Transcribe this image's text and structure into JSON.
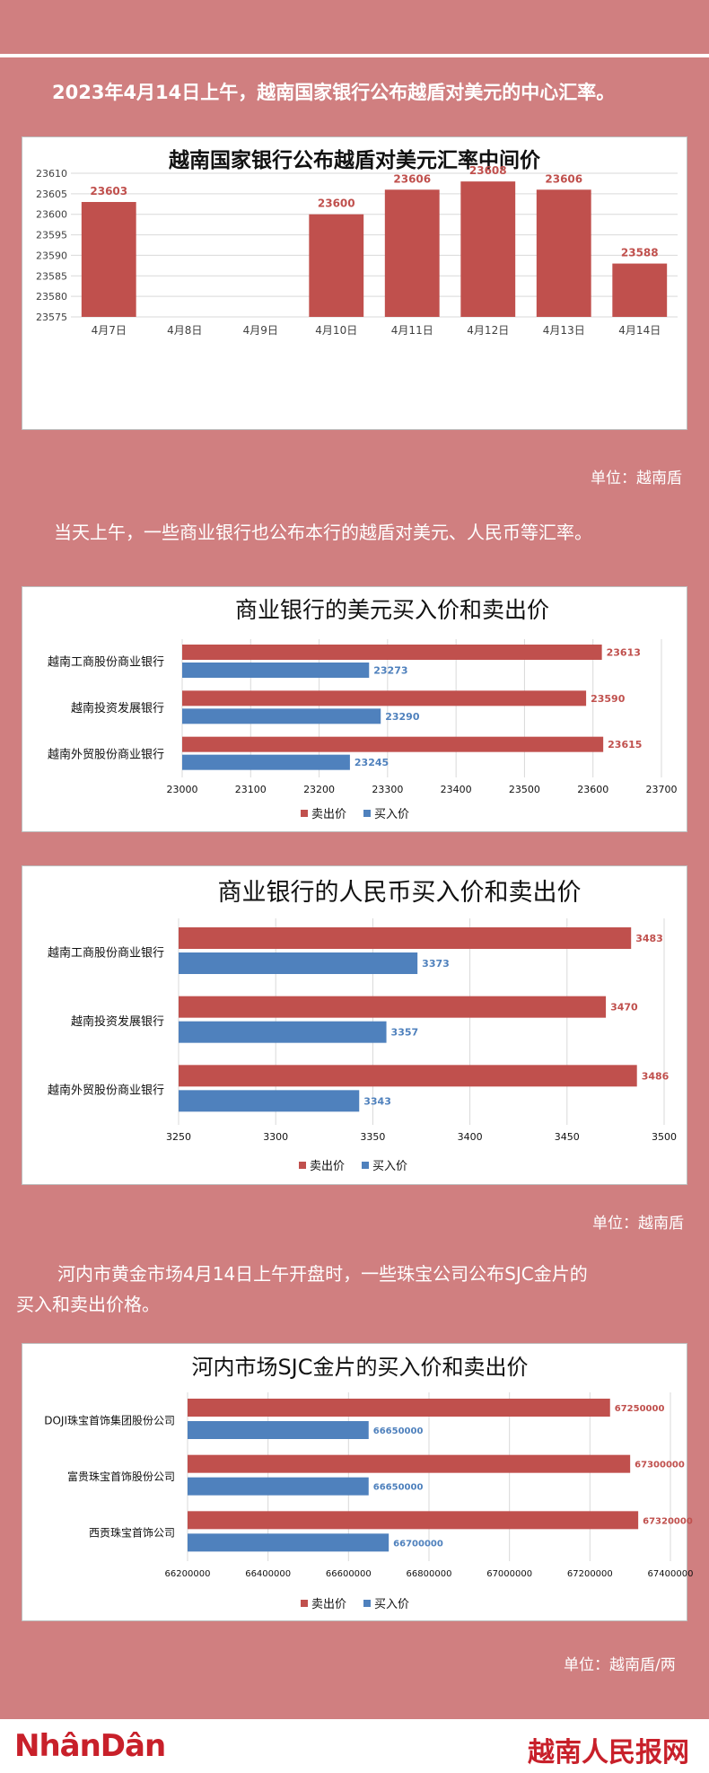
{
  "intro": {
    "text": "2023年4月14日上午，越南国家银行公布越盾对美元的中心汇率。"
  },
  "para2": {
    "text": "当天上午，一些商业银行也公布本行的越盾对美元、人民币等汇率。"
  },
  "para3": {
    "line1": "河内市黄金市场4月14日上午开盘时，一些珠宝公司公布SJC金片的",
    "line2": "买入和卖出价格。"
  },
  "units": {
    "u1": "单位：越南盾",
    "u2": "单位：越南盾",
    "u3": "单位：越南盾/两"
  },
  "footer": {
    "left_logo": "NhânDân",
    "right_logo": "越南人民报网"
  },
  "colors": {
    "background": "#d07f80",
    "sell": "#c0504d",
    "buy": "#4f81bd"
  },
  "chart_data": [
    {
      "type": "bar",
      "title": "越南国家银行公布越盾对美元汇率中间价",
      "categories": [
        "4月7日",
        "4月8日",
        "4月9日",
        "4月10日",
        "4月11日",
        "4月12日",
        "4月13日",
        "4月14日"
      ],
      "values": [
        23603,
        null,
        null,
        23600,
        23606,
        23608,
        23606,
        23588
      ],
      "data_labels": [
        "23603",
        "",
        "",
        "23600",
        "23606",
        "23608",
        "23606",
        "23588"
      ],
      "ylim": [
        23575,
        23610
      ],
      "yticks": [
        "23575",
        "23580",
        "23585",
        "23590",
        "23595",
        "23600",
        "23605",
        "23610"
      ],
      "grid": true
    },
    {
      "type": "bar",
      "orientation": "horizontal",
      "title": "商业银行的美元买入价和卖出价",
      "categories": [
        "越南工商股份商业银行",
        "越南投资发展银行",
        "越南外贸股份商业银行"
      ],
      "series": [
        {
          "name": "卖出价",
          "values": [
            23613,
            23590,
            23615
          ],
          "labels": [
            "23613",
            "23590",
            "23615"
          ]
        },
        {
          "name": "买入价",
          "values": [
            23273,
            23290,
            23245
          ],
          "labels": [
            "23273",
            "23290",
            "23245"
          ]
        }
      ],
      "xlim": [
        23000,
        23700
      ],
      "xticks": [
        "23000",
        "23100",
        "23200",
        "23300",
        "23400",
        "23500",
        "23600",
        "23700"
      ],
      "legend": "bottom"
    },
    {
      "type": "bar",
      "orientation": "horizontal",
      "title": "商业银行的人民币买入价和卖出价",
      "categories": [
        "越南工商股份商业银行",
        "越南投资发展银行",
        "越南外贸股份商业银行"
      ],
      "series": [
        {
          "name": "卖出价",
          "values": [
            3483,
            3470,
            3486
          ],
          "labels": [
            "3483",
            "3470",
            "3486"
          ]
        },
        {
          "name": "买入价",
          "values": [
            3373,
            3357,
            3343
          ],
          "labels": [
            "3373",
            "3357",
            "3343"
          ]
        }
      ],
      "xlim": [
        3250,
        3500
      ],
      "xticks": [
        "3250",
        "3300",
        "3350",
        "3400",
        "3450",
        "3500"
      ],
      "legend": "bottom"
    },
    {
      "type": "bar",
      "orientation": "horizontal",
      "title": "河内市场SJC金片的买入价和卖出价",
      "categories": [
        "DOJI珠宝首饰集团股份公司",
        "富贵珠宝首饰股份公司",
        "西贡珠宝首饰公司"
      ],
      "series": [
        {
          "name": "卖出价",
          "values": [
            67250000,
            67300000,
            67320000
          ],
          "labels": [
            "67250000",
            "67300000",
            "67320000"
          ]
        },
        {
          "name": "买入价",
          "values": [
            66650000,
            66650000,
            66700000
          ],
          "labels": [
            "66650000",
            "66650000",
            "66700000"
          ]
        }
      ],
      "xlim": [
        66200000,
        67400000
      ],
      "xticks": [
        "66200000",
        "66400000",
        "66600000",
        "66800000",
        "67000000",
        "67200000",
        "67400000"
      ],
      "legend": "bottom"
    }
  ]
}
